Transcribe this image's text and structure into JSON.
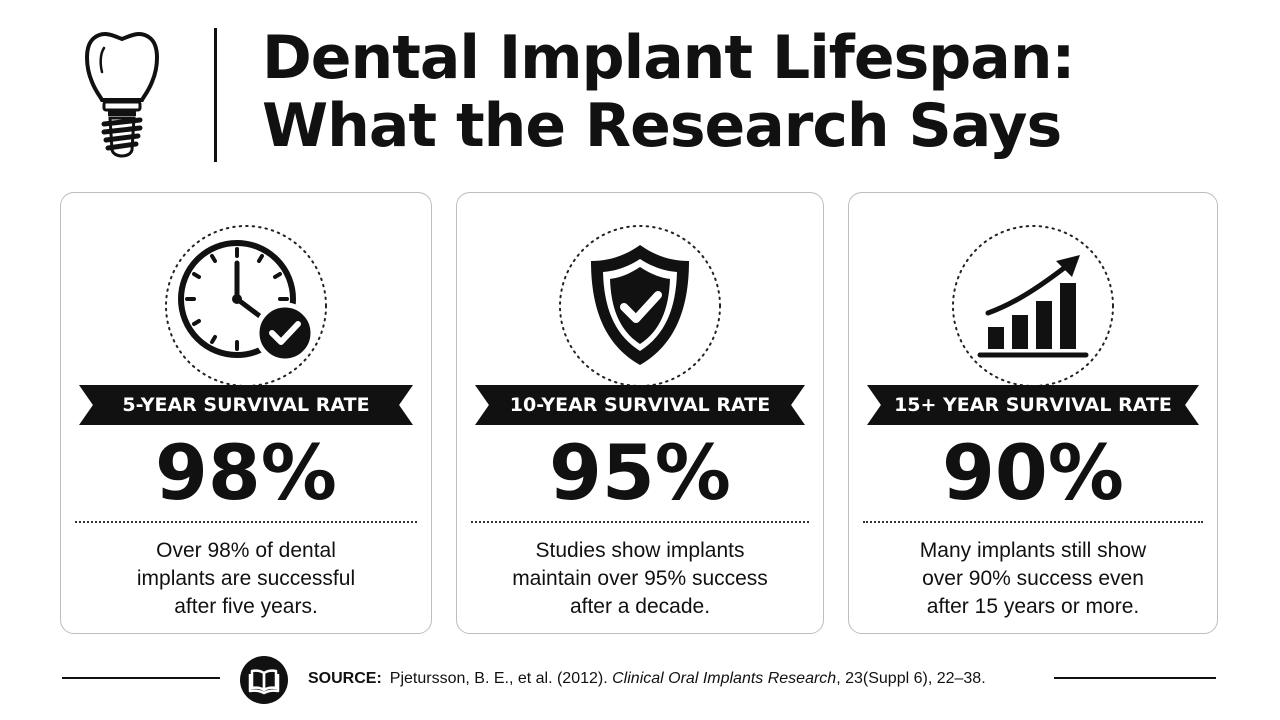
{
  "header": {
    "title_line1": "Dental Implant Lifespan:",
    "title_line2": "What the Research Says",
    "logo_icon": "dental-implant-icon"
  },
  "cards": [
    {
      "icon": "clock-check-icon",
      "label": "5-YEAR SURVIVAL RATE",
      "value": "98%",
      "description": [
        "Over 98% of dental",
        "implants are successful",
        "after five years."
      ]
    },
    {
      "icon": "shield-check-icon",
      "label": "10-YEAR SURVIVAL RATE",
      "value": "95%",
      "description": [
        "Studies show implants",
        "maintain over 95% success",
        "after a decade."
      ]
    },
    {
      "icon": "growth-chart-icon",
      "label": "15+ YEAR SURVIVAL RATE",
      "value": "90%",
      "description": [
        "Many implants still show",
        "over 90% success even",
        "after 15 years or more."
      ]
    }
  ],
  "footer": {
    "icon": "book-icon",
    "source_label": "SOURCE:",
    "citation_pre": "Pjetursson, B. E., et al. (2012).",
    "journal": "Clinical Oral Implants Research",
    "citation_post": ", 23(Suppl 6), 22–38."
  },
  "colors": {
    "text": "#111111",
    "background": "#ffffff",
    "card_border": "#bdbdbd",
    "ribbon": "#111111"
  }
}
